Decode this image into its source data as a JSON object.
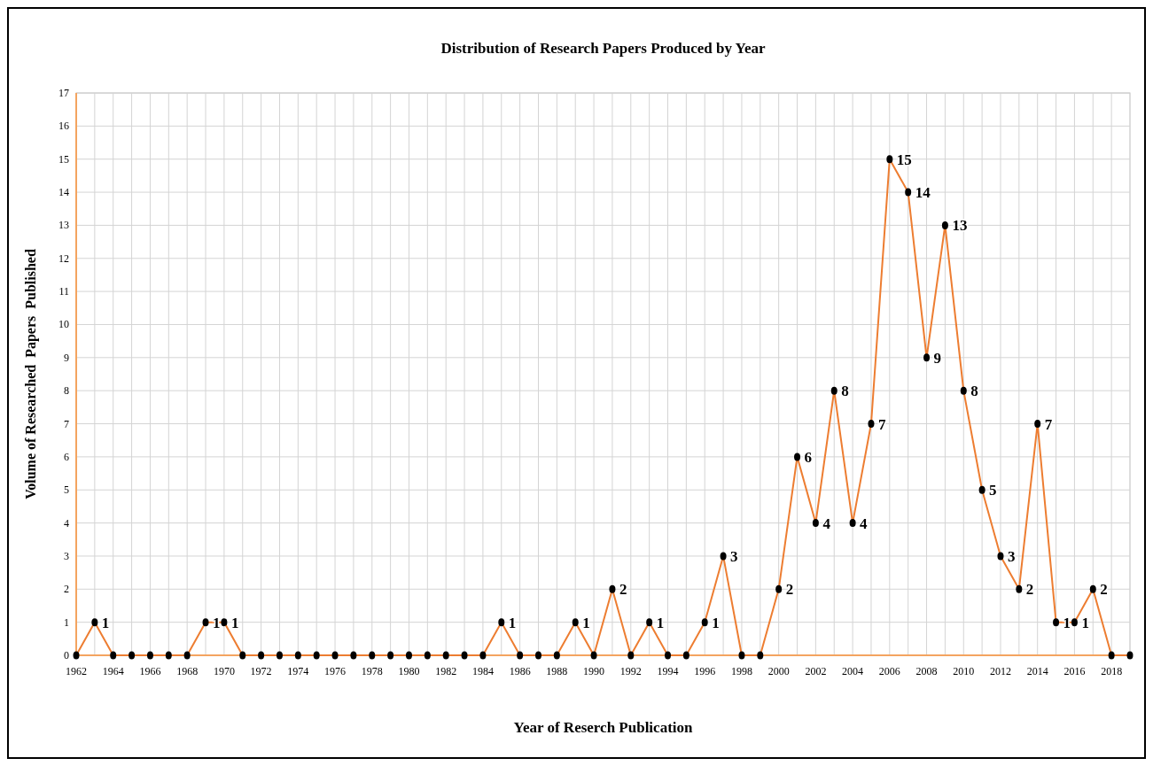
{
  "chart_data": {
    "type": "line",
    "title": "Distribution of Research Papers Produced by Year",
    "xlabel": "Year of Reserch Publication",
    "ylabel": "Volume of Researched  Papers  Published",
    "x": [
      1962,
      1963,
      1964,
      1965,
      1966,
      1967,
      1968,
      1969,
      1970,
      1971,
      1972,
      1973,
      1974,
      1975,
      1976,
      1977,
      1978,
      1979,
      1980,
      1981,
      1982,
      1983,
      1984,
      1985,
      1986,
      1987,
      1988,
      1989,
      1990,
      1991,
      1992,
      1993,
      1994,
      1995,
      1996,
      1997,
      1998,
      1999,
      2000,
      2001,
      2002,
      2003,
      2004,
      2005,
      2006,
      2007,
      2008,
      2009,
      2010,
      2011,
      2012,
      2013,
      2014,
      2015,
      2016,
      2017,
      2018,
      2019
    ],
    "series": [
      {
        "color": "#ed7d31",
        "values": [
          0,
          1,
          0,
          0,
          0,
          0,
          0,
          1,
          1,
          0,
          0,
          0,
          0,
          0,
          0,
          0,
          0,
          0,
          0,
          0,
          0,
          0,
          0,
          1,
          0,
          0,
          0,
          1,
          0,
          2,
          0,
          1,
          0,
          0,
          1,
          3,
          0,
          0,
          2,
          6,
          4,
          8,
          4,
          7,
          15,
          14,
          9,
          13,
          8,
          5,
          3,
          2,
          7,
          1,
          1,
          2,
          0,
          0
        ],
        "value_labels": [
          null,
          "1",
          null,
          null,
          null,
          null,
          null,
          "1",
          "1",
          null,
          null,
          null,
          null,
          null,
          null,
          null,
          null,
          null,
          null,
          null,
          null,
          null,
          null,
          "1",
          null,
          null,
          null,
          "1",
          null,
          "2",
          null,
          "1",
          null,
          null,
          "1",
          "3",
          null,
          null,
          "2",
          "6",
          "4",
          "8",
          "4",
          "7",
          "15",
          "14",
          "9",
          "13",
          "8",
          "5",
          "3",
          "2",
          "7",
          "1",
          "1",
          "2",
          null,
          null
        ]
      }
    ],
    "xlim": [
      1962,
      2019
    ],
    "xticks": [
      1962,
      {
        "value": 1963,
        "label": null
      },
      1964,
      {
        "value": 1965,
        "label": null
      },
      1966,
      {
        "value": 1967,
        "label": null
      },
      1968,
      {
        "value": 1969,
        "label": null
      },
      1970,
      {
        "value": 1971,
        "label": null
      },
      1972,
      {
        "value": 1973,
        "label": null
      },
      1974,
      {
        "value": 1975,
        "label": null
      },
      1976,
      {
        "value": 1977,
        "label": null
      },
      1978,
      {
        "value": 1979,
        "label": null
      },
      1980,
      {
        "value": 1981,
        "label": null
      },
      1982,
      {
        "value": 1983,
        "label": null
      },
      1984,
      {
        "value": 1985,
        "label": null
      },
      1986,
      {
        "value": 1987,
        "label": null
      },
      1988,
      {
        "value": 1989,
        "label": null
      },
      1990,
      {
        "value": 1991,
        "label": null
      },
      1992,
      {
        "value": 1993,
        "label": null
      },
      1994,
      {
        "value": 1995,
        "label": null
      },
      1996,
      {
        "value": 1997,
        "label": null
      },
      1998,
      {
        "value": 1999,
        "label": null
      },
      2000,
      {
        "value": 2001,
        "label": null
      },
      2002,
      {
        "value": 2003,
        "label": null
      },
      2004,
      {
        "value": 2005,
        "label": null
      },
      2006,
      {
        "value": 2007,
        "label": null
      },
      2008,
      {
        "value": 2009,
        "label": null
      },
      2010,
      {
        "value": 2011,
        "label": null
      },
      2012,
      {
        "value": 2013,
        "label": null
      },
      2014,
      {
        "value": 2015,
        "label": null
      },
      2016,
      {
        "value": 2017,
        "label": null
      },
      2018
    ],
    "ylim": [
      0,
      17
    ],
    "yticks": [
      0,
      1,
      2,
      3,
      4,
      5,
      6,
      7,
      8,
      9,
      10,
      11,
      12,
      13,
      14,
      15,
      16,
      17
    ],
    "grid": true,
    "marker": "circle",
    "line_style": "solid"
  }
}
